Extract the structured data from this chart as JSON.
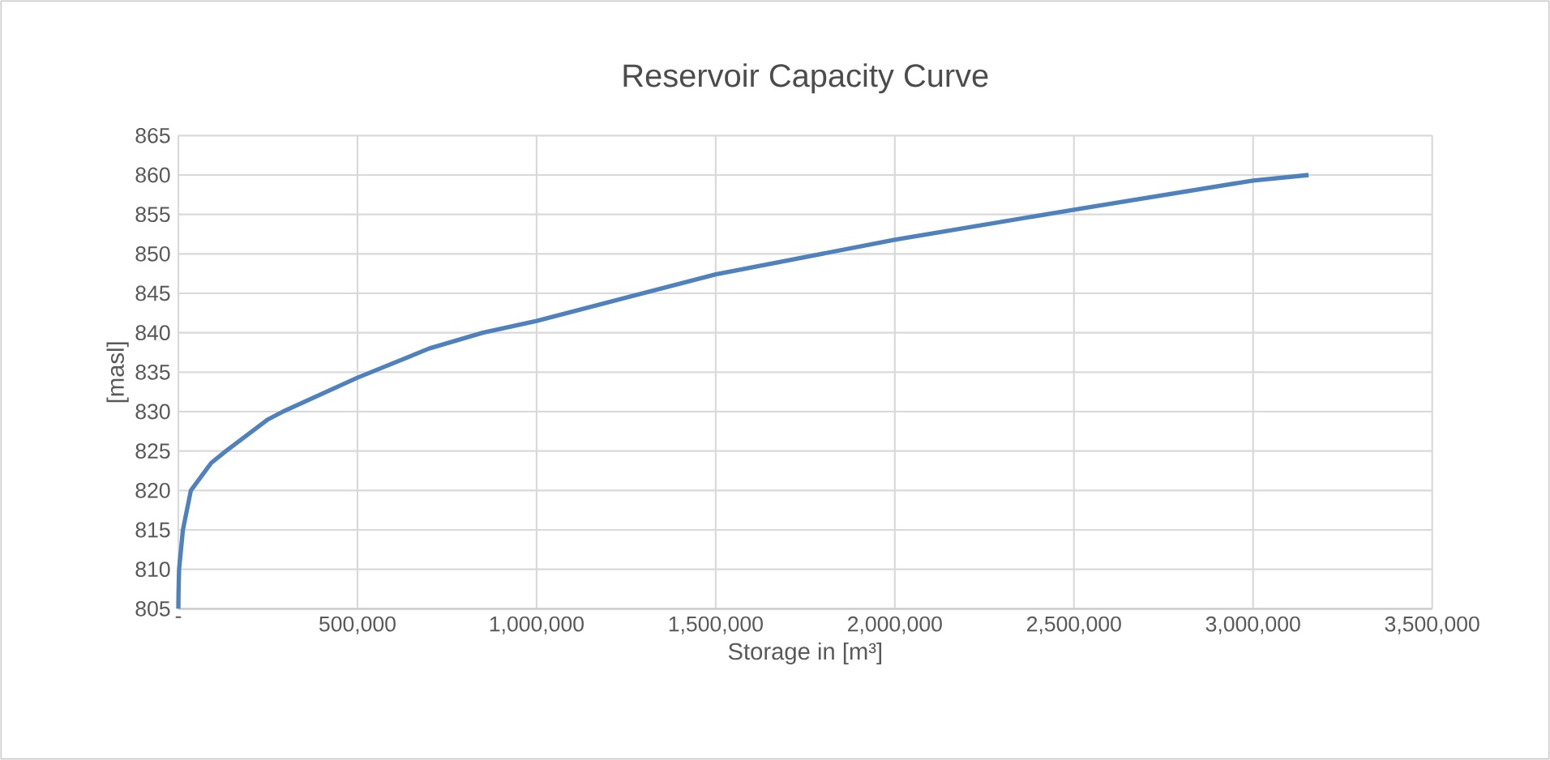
{
  "chart_data": {
    "type": "line",
    "title": "Reservoir Capacity Curve",
    "xlabel": "Storage in [m³]",
    "ylabel": "[masl]",
    "x": [
      0,
      500,
      2000,
      12700,
      35000,
      92000,
      133000,
      250000,
      292000,
      500000,
      700000,
      850000,
      1000000,
      1500000,
      2000000,
      2500000,
      3000000,
      3155000
    ],
    "series": [
      {
        "color": "#4f81bd",
        "values": [
          805,
          807,
          810,
          815,
          820,
          823.5,
          825,
          829,
          830,
          834.3,
          838,
          840,
          841.5,
          847.4,
          851.8,
          855.6,
          859.3,
          860
        ]
      }
    ],
    "xlim": [
      0,
      3500000
    ],
    "ylim": [
      805,
      865
    ],
    "xticks": [
      {
        "value": 0,
        "label": "-"
      },
      {
        "value": 500000,
        "label": "500,000"
      },
      {
        "value": 1000000,
        "label": "1,000,000"
      },
      {
        "value": 1500000,
        "label": "1,500,000"
      },
      {
        "value": 2000000,
        "label": "2,000,000"
      },
      {
        "value": 2500000,
        "label": "2,500,000"
      },
      {
        "value": 3000000,
        "label": "3,000,000"
      },
      {
        "value": 3500000,
        "label": "3,500,000"
      }
    ],
    "yticks": [
      805,
      810,
      815,
      820,
      825,
      830,
      835,
      840,
      845,
      850,
      855,
      860,
      865
    ],
    "grid": true,
    "marker": "none",
    "line_style": "solid"
  }
}
